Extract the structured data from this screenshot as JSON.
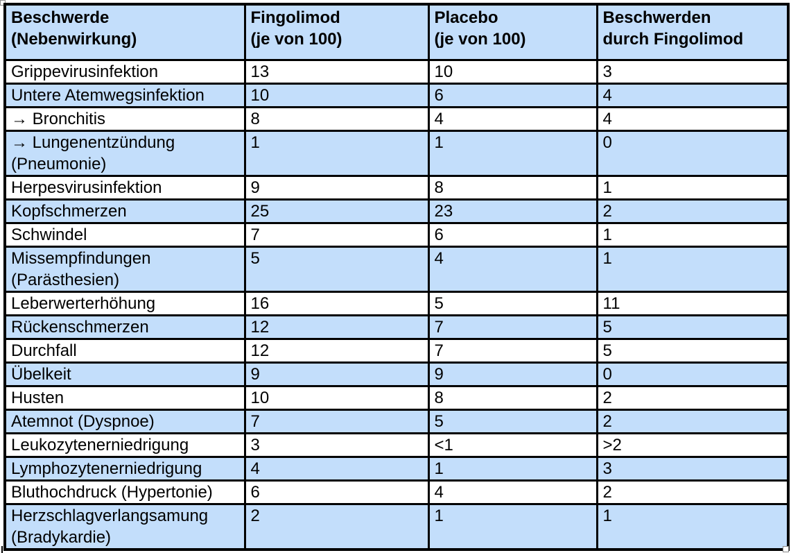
{
  "table": {
    "columns": [
      {
        "id": "beschwerde",
        "label": "Beschwerde\n(Nebenwirkung)"
      },
      {
        "id": "fingolimod",
        "label": "Fingolimod\n(je von 100)"
      },
      {
        "id": "placebo",
        "label": "Placebo\n(je von 100)"
      },
      {
        "id": "durch_fingolimod",
        "label": "Beschwerden\ndurch Fingolimod"
      }
    ],
    "rows": [
      {
        "beschwerde": "Grippevirusinfektion",
        "fingolimod": "13",
        "placebo": "10",
        "durch_fingolimod": "3"
      },
      {
        "beschwerde": "Untere Atemwegsinfektion",
        "fingolimod": "10",
        "placebo": "6",
        "durch_fingolimod": "4"
      },
      {
        "beschwerde": "→ Bronchitis",
        "fingolimod": "8",
        "placebo": "4",
        "durch_fingolimod": "4"
      },
      {
        "beschwerde": "→ Lungenentzündung\n(Pneumonie)",
        "fingolimod": "1",
        "placebo": "1",
        "durch_fingolimod": "0"
      },
      {
        "beschwerde": "Herpesvirusinfektion",
        "fingolimod": "9",
        "placebo": "8",
        "durch_fingolimod": "1"
      },
      {
        "beschwerde": "Kopfschmerzen",
        "fingolimod": "25",
        "placebo": "23",
        "durch_fingolimod": "2"
      },
      {
        "beschwerde": "Schwindel",
        "fingolimod": "7",
        "placebo": "6",
        "durch_fingolimod": "1"
      },
      {
        "beschwerde": "Missempfindungen\n(Parästhesien)",
        "fingolimod": "5",
        "placebo": "4",
        "durch_fingolimod": "1"
      },
      {
        "beschwerde": "Leberwerterhöhung",
        "fingolimod": "16",
        "placebo": "5",
        "durch_fingolimod": "11"
      },
      {
        "beschwerde": "Rückenschmerzen",
        "fingolimod": "12",
        "placebo": "7",
        "durch_fingolimod": "5"
      },
      {
        "beschwerde": "Durchfall",
        "fingolimod": "12",
        "placebo": "7",
        "durch_fingolimod": "5"
      },
      {
        "beschwerde": "Übelkeit",
        "fingolimod": "9",
        "placebo": "9",
        "durch_fingolimod": "0"
      },
      {
        "beschwerde": "Husten",
        "fingolimod": "10",
        "placebo": "8",
        "durch_fingolimod": "2"
      },
      {
        "beschwerde": "Atemnot (Dyspnoe)",
        "fingolimod": "7",
        "placebo": "5",
        "durch_fingolimod": "2"
      },
      {
        "beschwerde": "Leukozytenerniedrigung",
        "fingolimod": "3",
        "placebo": "<1",
        "durch_fingolimod": ">2"
      },
      {
        "beschwerde": "Lymphozytenerniedrigung",
        "fingolimod": "4",
        "placebo": "1",
        "durch_fingolimod": "3"
      },
      {
        "beschwerde": "Bluthochdruck (Hypertonie)",
        "fingolimod": "6",
        "placebo": "4",
        "durch_fingolimod": "2"
      },
      {
        "beschwerde": "Herzschlagverlangsamung\n(Bradykardie)",
        "fingolimod": "2",
        "placebo": "1",
        "durch_fingolimod": "1"
      }
    ],
    "colors": {
      "shade": "#c3defb",
      "border": "#000000",
      "background": "#ffffff"
    }
  }
}
